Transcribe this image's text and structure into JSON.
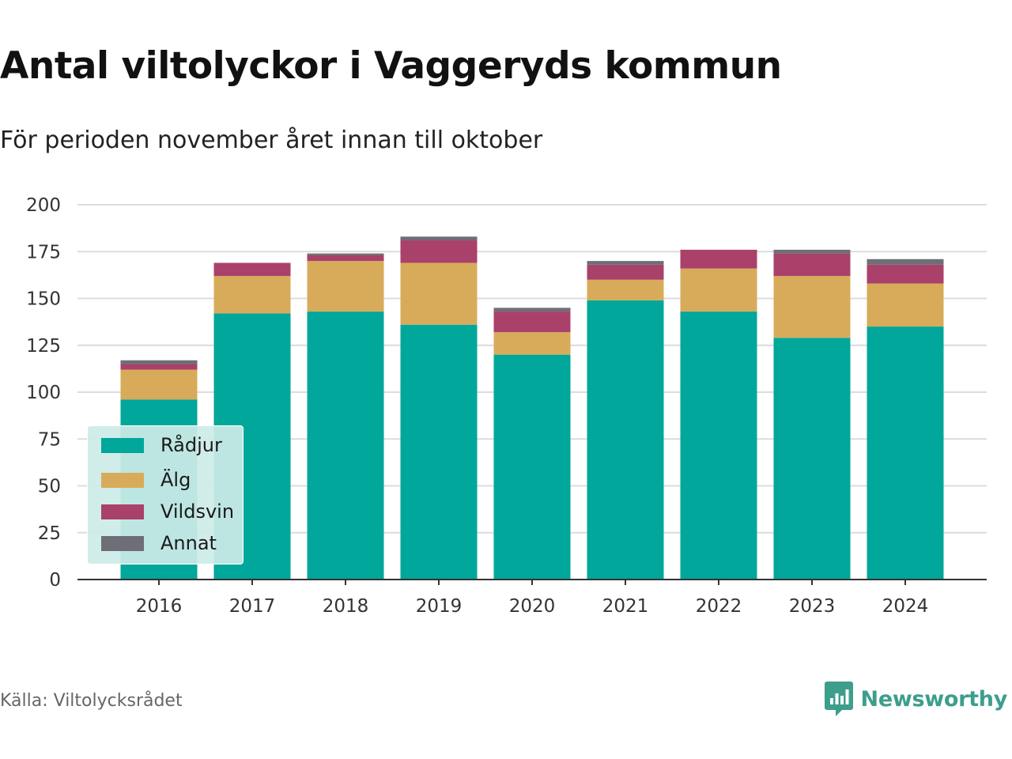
{
  "title": "Antal viltolyckor i Vaggeryds kommun",
  "subtitle": "För perioden november året innan till oktober",
  "source": "Källa: Viltolycksrådet",
  "brand": {
    "name": "Newsworthy",
    "icon": "newsworthy-logo-icon",
    "color": "#3d9e8c"
  },
  "chart_data": {
    "type": "bar",
    "stacked": true,
    "categories": [
      "2016",
      "2017",
      "2018",
      "2019",
      "2020",
      "2021",
      "2022",
      "2023",
      "2024"
    ],
    "series": [
      {
        "name": "Rådjur",
        "color": "#00a79a",
        "values": [
          96,
          142,
          143,
          136,
          120,
          149,
          143,
          129,
          135
        ]
      },
      {
        "name": "Älg",
        "color": "#d8ab5a",
        "values": [
          16,
          20,
          27,
          33,
          12,
          11,
          23,
          33,
          23
        ]
      },
      {
        "name": "Vildsvin",
        "color": "#a9416a",
        "values": [
          3,
          7,
          3,
          12,
          11,
          8,
          10,
          12,
          10
        ]
      },
      {
        "name": "Annat",
        "color": "#6e6e76",
        "values": [
          2,
          0,
          1,
          2,
          2,
          2,
          0,
          2,
          3
        ]
      }
    ],
    "ylim": [
      0,
      200
    ],
    "yticks": [
      0,
      25,
      50,
      75,
      100,
      125,
      150,
      175,
      200
    ],
    "xlabel": "",
    "ylabel": "",
    "grid": true,
    "legend_position": "bottom-left"
  }
}
